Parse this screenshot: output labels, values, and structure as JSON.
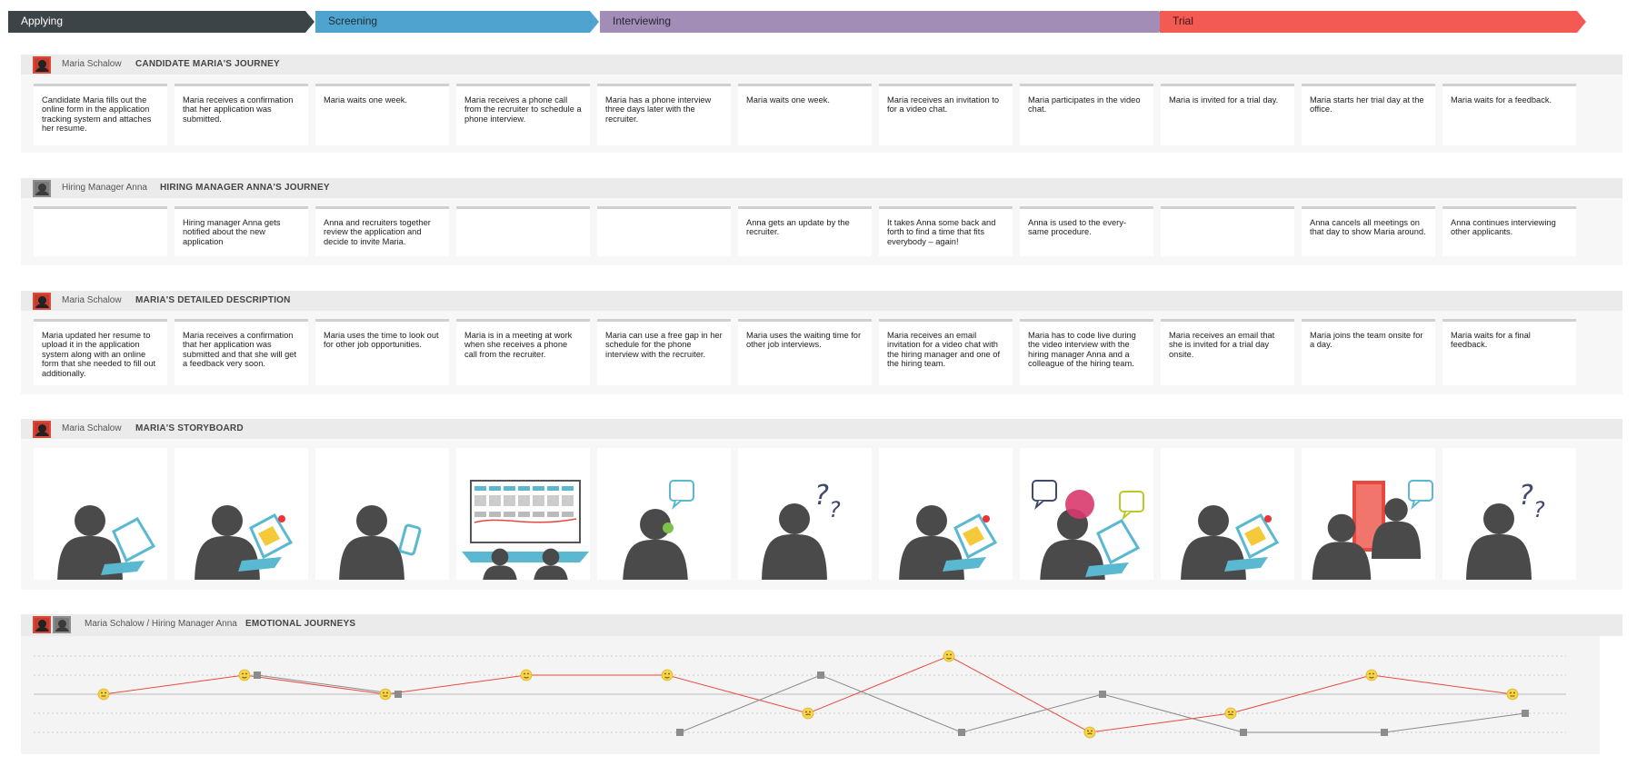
{
  "phases": [
    {
      "label": "Applying",
      "color": "#3d4447",
      "text_color": "#ffffff"
    },
    {
      "label": "Screening",
      "color": "#4fa4cf",
      "text_color": "#1d2a33"
    },
    {
      "label": "Interviewing",
      "color": "#a28db7",
      "text_color": "#2c2436"
    },
    {
      "label": "Trial",
      "color": "#f25a53",
      "text_color": "#3a1413"
    }
  ],
  "lanes": {
    "candidate_journey": {
      "owner": "Maria Schalow",
      "title": "CANDIDATE MARIA'S JOURNEY",
      "cards": [
        "Candidate Maria fills out the online form in the application tracking system and attaches her resume.",
        "Maria receives a confirmation that her application was submitted.",
        "Maria waits one week.",
        "Maria receives a phone call from the recruiter to schedule a phone interview.",
        "Maria has a phone interview three days later with the recruiter.",
        "Maria waits one week.",
        "Maria receives an invitation to for a video chat.",
        "Maria participates in the video chat.",
        "Maria is invited for a trial day.",
        "Maria starts her trial day at the office.",
        "Maria waits for a feedback."
      ]
    },
    "manager_journey": {
      "owner": "Hiring Manager Anna",
      "title": "HIRING MANAGER ANNA'S JOURNEY",
      "cards": [
        "",
        "Hiring manager Anna gets notified about the new application",
        "Anna and recruiters together review the application and decide to invite Maria.",
        "",
        "",
        "Anna gets an update by the recruiter.",
        "It takes Anna some back and forth to find a time that fits everybody – again!",
        "Anna is used to the every-same procedure.",
        "",
        "Anna cancels all meetings on that day to show Maria around.",
        "Anna continues interviewing other applicants."
      ]
    },
    "detailed_description": {
      "owner": "Maria Schalow",
      "title": "MARIA'S DETAILED DESCRIPTION",
      "cards": [
        "Maria updated her resume to upload it in the application system along with an online form that she needed to fill out additionally.",
        "Maria receives a confirmation that her application was submitted and that she will get a feedback very soon.",
        "Maria uses the time to look out for other job opportunities.",
        "Maria is in a meeting at work when she receives a phone call from the recruiter.",
        "Maria can use a free gap in her schedule for the phone interview with the recruiter.",
        "Maria uses the waiting time for other job interviews.",
        "Maria receives an email invitation for a video chat with the hiring manager and one of the hiring team.",
        "Maria has to code live during the video interview with the hiring manager Anna and a colleague of the hiring team.",
        "Maria receives an email that she is invited for a trial day onsite.",
        "Maria joins the team onsite for a day.",
        "Maria waits for a final feedback."
      ]
    },
    "storyboard": {
      "owner": "Maria Schalow",
      "title": "MARIA'S STORYBOARD",
      "scenes": [
        "person-laptop-icon",
        "person-laptop-mail-icon",
        "person-phone-icon",
        "meeting-board-icon",
        "person-phone-call-icon",
        "person-thinking-icon",
        "person-laptop-mail-icon",
        "video-chat-icon",
        "person-laptop-mail-icon",
        "office-door-icon",
        "person-thinking-icon"
      ]
    },
    "emotional": {
      "owner": "Maria Schalow / Hiring Manager Anna",
      "title": "EMOTIONAL JOURNEYS"
    }
  },
  "colors": {
    "candidate_line": "#e8493f",
    "manager_line": "#8a8a8a",
    "face": "#f7d448",
    "storyboard_figure": "#4a4a4a",
    "storyboard_accent": "#5ab8d1"
  },
  "chart_data": {
    "type": "line",
    "x": [
      1,
      2,
      3,
      4,
      5,
      6,
      7,
      8,
      9,
      10,
      11
    ],
    "ylim": [
      -2,
      2
    ],
    "grid": true,
    "series": [
      {
        "values": [
          0,
          1,
          0,
          1,
          1,
          -1,
          2,
          -2,
          -1,
          1,
          0
        ],
        "marker": "emoji-face"
      },
      {
        "values": [
          null,
          1,
          0,
          null,
          -2,
          1,
          -2,
          0,
          -2,
          -2,
          -1
        ],
        "marker": "square"
      }
    ]
  }
}
